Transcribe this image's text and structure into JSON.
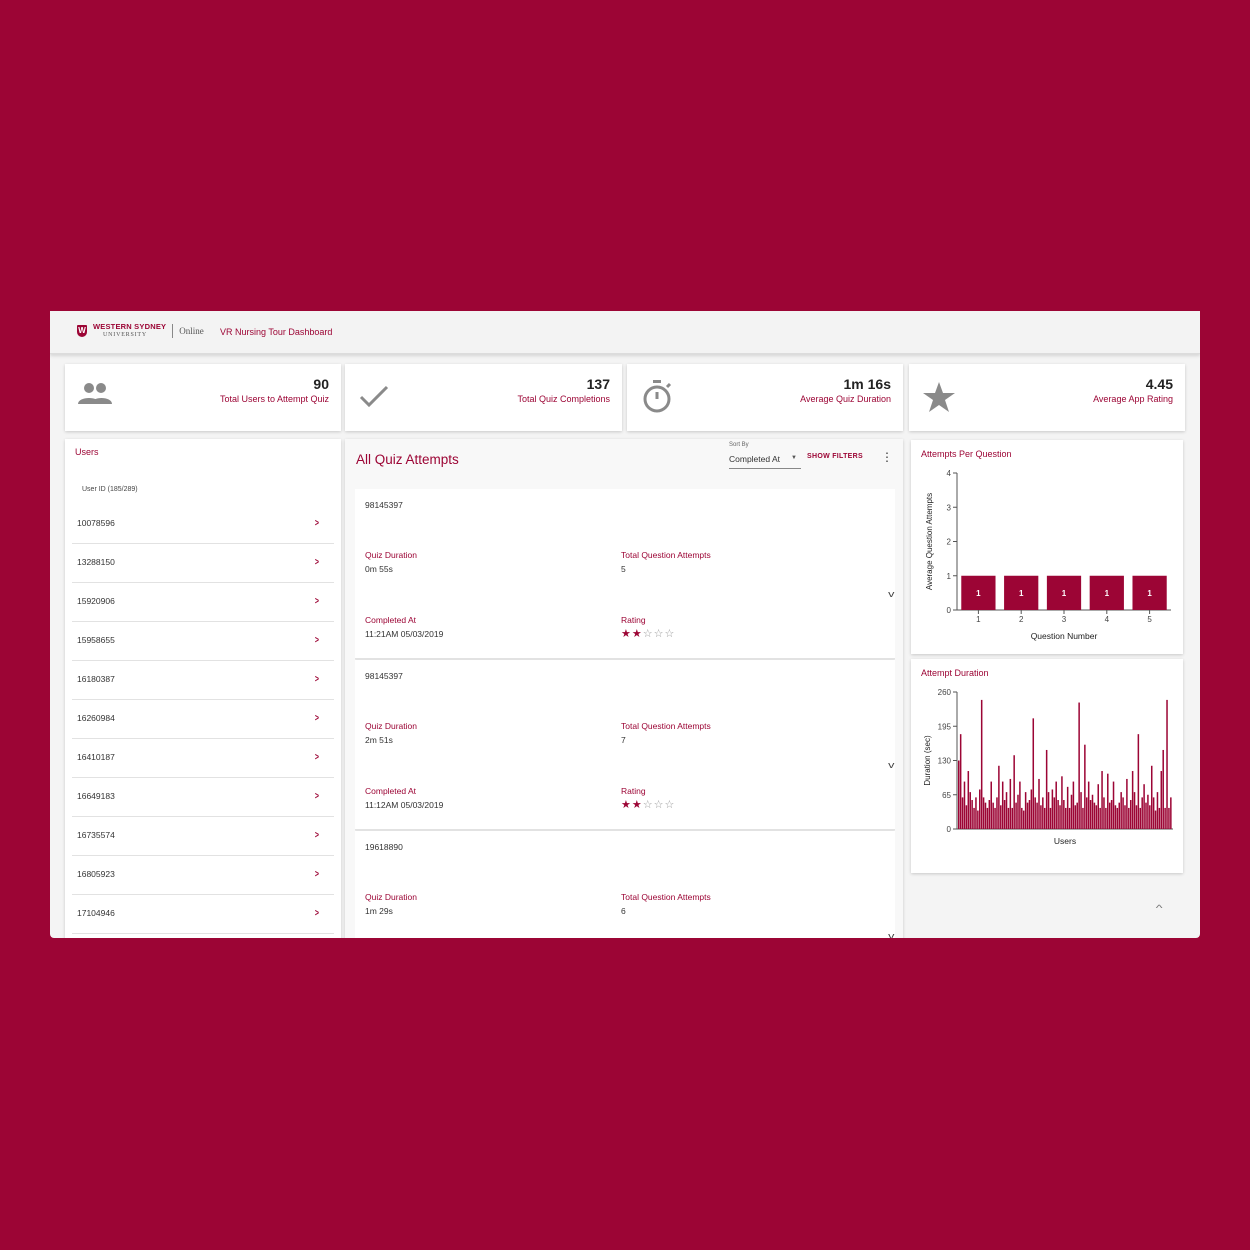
{
  "header": {
    "logo_line1": "WESTERN SYDNEY",
    "logo_line2": "UNIVERSITY",
    "logo_online": "Online",
    "title": "VR Nursing Tour Dashboard"
  },
  "stats": [
    {
      "value": "90",
      "label": "Total Users to Attempt Quiz",
      "icon": "group-icon"
    },
    {
      "value": "137",
      "label": "Total Quiz Completions",
      "icon": "check-icon"
    },
    {
      "value": "1m 16s",
      "label": "Average Quiz Duration",
      "icon": "stopwatch-icon"
    },
    {
      "value": "4.45",
      "label": "Average App Rating",
      "icon": "star-icon"
    }
  ],
  "users": {
    "title": "Users",
    "column_header": "User ID (185/289)",
    "items": [
      "10078596",
      "13288150",
      "15920906",
      "15958655",
      "16180387",
      "16260984",
      "16410187",
      "16649183",
      "16735574",
      "16805923",
      "17104946"
    ]
  },
  "attempts_panel": {
    "title": "All Quiz Attempts",
    "sort_label": "Sort By",
    "sort_value": "Completed At",
    "show_filters": "SHOW FILTERS",
    "labels": {
      "duration": "Quiz Duration",
      "question_attempts": "Total Question Attempts",
      "completed_at": "Completed At",
      "rating": "Rating"
    },
    "items": [
      {
        "id": "98145397",
        "duration": "0m 55s",
        "question_attempts": "5",
        "completed_at": "11:21AM 05/03/2019",
        "rating": 2
      },
      {
        "id": "98145397",
        "duration": "2m 51s",
        "question_attempts": "7",
        "completed_at": "11:12AM 05/03/2019",
        "rating": 2
      },
      {
        "id": "19618890",
        "duration": "1m 29s",
        "question_attempts": "6",
        "completed_at": "",
        "rating": null
      }
    ]
  },
  "chart_data": [
    {
      "type": "bar",
      "title": "Attempts Per Question",
      "xlabel": "Question Number",
      "ylabel": "Average Question Attempts",
      "categories": [
        "1",
        "2",
        "3",
        "4",
        "5"
      ],
      "values": [
        1,
        1,
        1,
        1,
        1
      ],
      "ylim": [
        0,
        4
      ],
      "yticks": [
        0,
        1,
        2,
        3,
        4
      ],
      "color": "#9c0535"
    },
    {
      "type": "bar",
      "title": "Attempt Duration",
      "xlabel": "Users",
      "ylabel": "Duration (sec)",
      "ylim": [
        0,
        260
      ],
      "yticks": [
        0,
        65,
        130,
        195,
        260
      ],
      "color": "#9c0535",
      "values": [
        130,
        180,
        60,
        90,
        45,
        110,
        70,
        55,
        40,
        60,
        35,
        75,
        245,
        60,
        50,
        40,
        55,
        90,
        50,
        40,
        60,
        120,
        45,
        90,
        55,
        70,
        40,
        95,
        40,
        140,
        50,
        65,
        90,
        40,
        35,
        70,
        50,
        55,
        75,
        210,
        60,
        50,
        95,
        45,
        60,
        40,
        150,
        70,
        40,
        75,
        60,
        90,
        55,
        45,
        100,
        55,
        40,
        80,
        40,
        65,
        90,
        45,
        50,
        240,
        70,
        40,
        160,
        60,
        90,
        55,
        65,
        50,
        45,
        85,
        40,
        110,
        60,
        40,
        105,
        50,
        55,
        90,
        45,
        40,
        50,
        70,
        60,
        45,
        95,
        40,
        55,
        110,
        70,
        45,
        180,
        40,
        60,
        85,
        50,
        65,
        45,
        120,
        60,
        35,
        70,
        40,
        110,
        150,
        40,
        245,
        40,
        60
      ]
    }
  ]
}
